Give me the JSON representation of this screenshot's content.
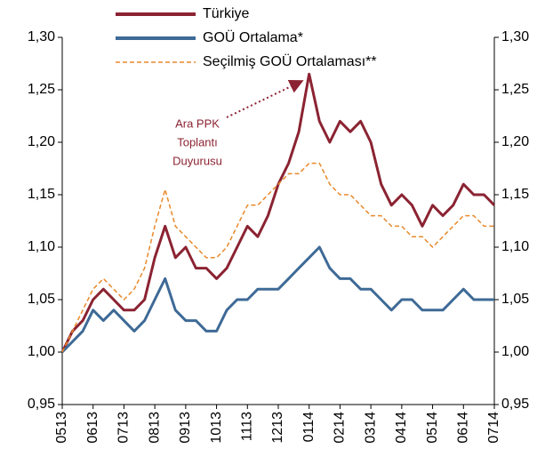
{
  "chart_data": {
    "type": "line",
    "categories": [
      "0513",
      null,
      null,
      "0613",
      null,
      null,
      "0713",
      null,
      null,
      "0813",
      null,
      null,
      "0913",
      null,
      null,
      "1013",
      null,
      null,
      "1113",
      null,
      null,
      "1213",
      null,
      null,
      "0114",
      null,
      null,
      "0214",
      null,
      null,
      "0314",
      null,
      null,
      "0414",
      null,
      null,
      "0514",
      null,
      null,
      "0614",
      null,
      null,
      "0714"
    ],
    "series": [
      {
        "name": "Türkiye",
        "color": "#8b2332",
        "style": "solid",
        "values": [
          1.0,
          1.02,
          1.03,
          1.05,
          1.06,
          1.05,
          1.04,
          1.04,
          1.05,
          1.09,
          1.12,
          1.09,
          1.1,
          1.08,
          1.08,
          1.07,
          1.08,
          1.1,
          1.12,
          1.11,
          1.13,
          1.16,
          1.18,
          1.21,
          1.265,
          1.22,
          1.2,
          1.22,
          1.21,
          1.22,
          1.2,
          1.16,
          1.14,
          1.15,
          1.14,
          1.12,
          1.14,
          1.13,
          1.14,
          1.16,
          1.15,
          1.15,
          1.14
        ]
      },
      {
        "name": "GOÜ Ortalama*",
        "color": "#3e6a96",
        "style": "solid",
        "values": [
          1.0,
          1.01,
          1.02,
          1.04,
          1.03,
          1.04,
          1.03,
          1.02,
          1.03,
          1.05,
          1.07,
          1.04,
          1.03,
          1.03,
          1.02,
          1.02,
          1.04,
          1.05,
          1.05,
          1.06,
          1.06,
          1.06,
          1.07,
          1.08,
          1.09,
          1.1,
          1.08,
          1.07,
          1.07,
          1.06,
          1.06,
          1.05,
          1.04,
          1.05,
          1.05,
          1.04,
          1.04,
          1.04,
          1.05,
          1.06,
          1.05,
          1.05,
          1.05
        ]
      },
      {
        "name": "Seçilmiş GOÜ Ortalaması**",
        "color": "#e8892b",
        "style": "dashed",
        "values": [
          1.0,
          1.02,
          1.04,
          1.06,
          1.07,
          1.06,
          1.05,
          1.06,
          1.08,
          1.12,
          1.155,
          1.12,
          1.11,
          1.1,
          1.09,
          1.09,
          1.1,
          1.12,
          1.14,
          1.14,
          1.15,
          1.16,
          1.17,
          1.17,
          1.18,
          1.18,
          1.16,
          1.15,
          1.15,
          1.14,
          1.13,
          1.13,
          1.12,
          1.12,
          1.11,
          1.11,
          1.1,
          1.11,
          1.12,
          1.13,
          1.13,
          1.12,
          1.12
        ]
      }
    ],
    "annotation": [
      "Ara PPK",
      "Toplantı",
      "Duyurusu"
    ],
    "ylim": [
      0.95,
      1.3
    ],
    "yticks": [
      {
        "value": 0.95,
        "label": "0,95"
      },
      {
        "value": 1.0,
        "label": "1,00"
      },
      {
        "value": 1.05,
        "label": "1,05"
      },
      {
        "value": 1.1,
        "label": "1,10"
      },
      {
        "value": 1.15,
        "label": "1,15"
      },
      {
        "value": 1.2,
        "label": "1,20"
      },
      {
        "value": 1.25,
        "label": "1,25"
      },
      {
        "value": 1.3,
        "label": "1,30"
      }
    ],
    "y2lim": [
      0.95,
      1.3
    ],
    "y2ticks": [
      {
        "value": 0.95,
        "label": "0,95"
      },
      {
        "value": 1.0,
        "label": "1,00"
      },
      {
        "value": 1.05,
        "label": "1,05"
      },
      {
        "value": 1.1,
        "label": "1,10"
      },
      {
        "value": 1.15,
        "label": "1,15"
      },
      {
        "value": 1.2,
        "label": "1,20"
      },
      {
        "value": 1.25,
        "label": "1,25"
      },
      {
        "value": 1.3,
        "label": "1,30"
      }
    ],
    "legend": "top"
  }
}
